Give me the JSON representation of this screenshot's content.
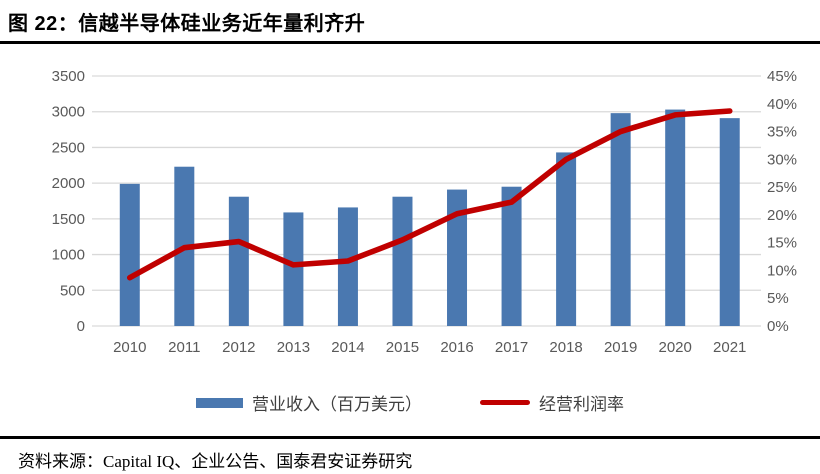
{
  "title": "图 22：信越半导体硅业务近年量利齐升",
  "footer": {
    "source": "资料来源：Capital IQ、企业公告、国泰君安证券研究"
  },
  "colors": {
    "bar": "#4a78b0",
    "line": "#c00000",
    "gridline": "#d9d9d9",
    "axis_text": "#595959",
    "title_text": "#000000"
  },
  "chart_data": {
    "type": "bar",
    "subtype": "combo-bar-line",
    "title": "图 22：信越半导体硅业务近年量利齐升",
    "categories": [
      "2010",
      "2011",
      "2012",
      "2013",
      "2014",
      "2015",
      "2016",
      "2017",
      "2018",
      "2019",
      "2020",
      "2021"
    ],
    "series": [
      {
        "name": "营业收入（百万美元）",
        "type": "bar",
        "axis": "left",
        "color": "#4a78b0",
        "values": [
          1990,
          2230,
          1810,
          1590,
          1660,
          1810,
          1910,
          1950,
          2430,
          2980,
          3030,
          2910
        ]
      },
      {
        "name": "经营利润率",
        "type": "line",
        "axis": "right",
        "unit": "%",
        "color": "#c00000",
        "values": [
          8.7,
          14.1,
          15.2,
          11.0,
          11.7,
          15.5,
          20.2,
          22.3,
          30.0,
          35.0,
          38.0,
          38.7
        ]
      }
    ],
    "left_axis": {
      "min": 0,
      "max": 3500,
      "step": 500,
      "ticks": [
        "0",
        "500",
        "1000",
        "1500",
        "2000",
        "2500",
        "3000",
        "3500"
      ]
    },
    "right_axis": {
      "min": 0,
      "max": 45,
      "step": 5,
      "ticks": [
        "0%",
        "5%",
        "10%",
        "15%",
        "20%",
        "25%",
        "30%",
        "35%",
        "40%",
        "45%"
      ]
    },
    "grid": "horizontal",
    "legend_position": "bottom"
  }
}
